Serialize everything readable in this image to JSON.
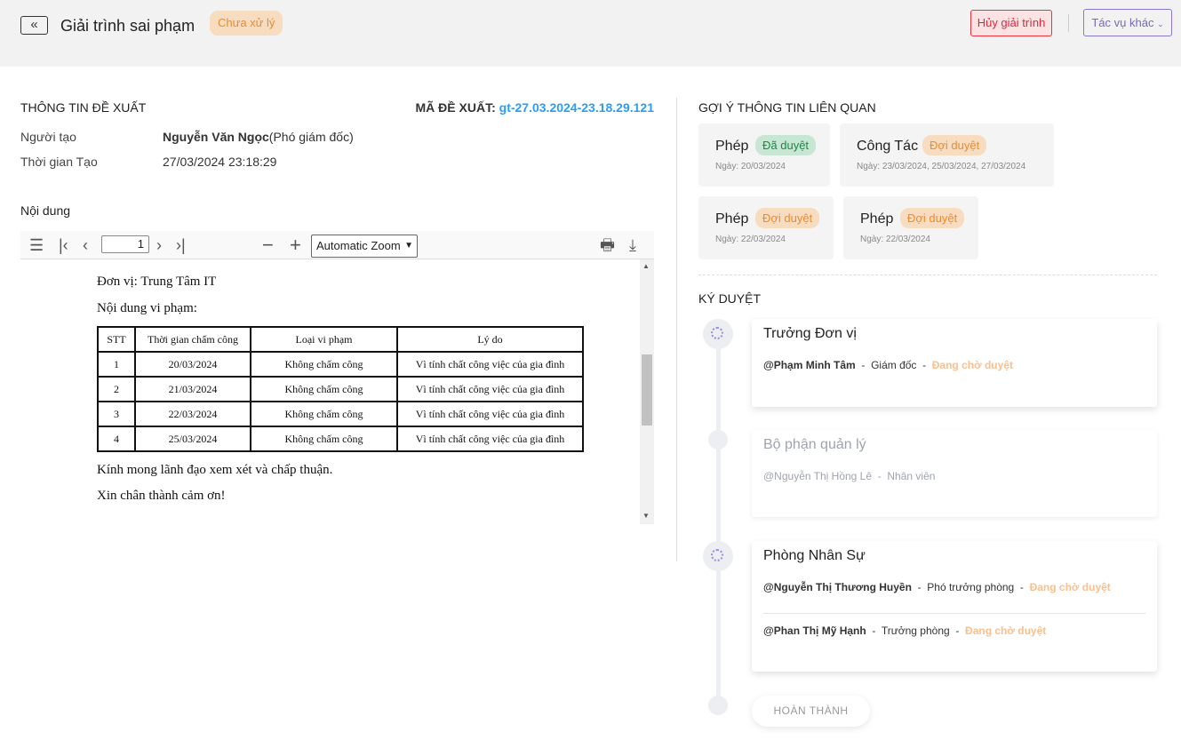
{
  "header": {
    "title": "Giải trình sai phạm",
    "status": "Chưa xử lý",
    "cancel_label": "Hủy giải trình",
    "more_label": "Tác vụ khác"
  },
  "info": {
    "section_title": "THÔNG TIN ĐỀ XUẤT",
    "code_label": "MÃ ĐỀ XUẤT:",
    "code_value": "gt-27.03.2024-23.18.29.121",
    "creator_label": "Người tạo",
    "creator_name": "Nguyễn Văn Ngọc",
    "creator_role": "(Phó giám đốc)",
    "time_label": "Thời gian Tạo",
    "time_value": "27/03/2024 23:18:29",
    "content_label": "Nội dung"
  },
  "pdf": {
    "page": "1",
    "zoom": "Automatic Zoom",
    "unit": "Đơn vị: Trung Tâm IT",
    "violation_label": "Nội dung vi phạm:",
    "columns": [
      "STT",
      "Thời gian chấm công",
      "Loại vi phạm",
      "Lý do"
    ],
    "rows": [
      [
        "1",
        "20/03/2024",
        "Không chấm công",
        "Vì tính chất công việc của gia đình"
      ],
      [
        "2",
        "21/03/2024",
        "Không chấm công",
        "Vì tính chất công việc của gia đình"
      ],
      [
        "3",
        "22/03/2024",
        "Không chấm công",
        "Vì tính chất công việc của gia đình"
      ],
      [
        "4",
        "25/03/2024",
        "Không chấm công",
        "Vì tính chất công việc của gia đình"
      ]
    ],
    "closing1": "Kính mong lãnh đạo xem xét và chấp thuận.",
    "closing2": "Xin chân thành cảm ơn!"
  },
  "related": {
    "title": "GỢI Ý THÔNG TIN LIÊN QUAN",
    "items": [
      {
        "type": "Phép",
        "status": "Đã duyệt",
        "date": "Ngày: 20/03/2024"
      },
      {
        "type": "Công Tác",
        "status": "Đợi duyệt",
        "date": "Ngày: 23/03/2024, 25/03/2024, 27/03/2024"
      },
      {
        "type": "Phép",
        "status": "Đợi duyệt",
        "date": "Ngày: 22/03/2024"
      },
      {
        "type": "Phép",
        "status": "Đợi duyệt",
        "date": "Ngày: 22/03/2024"
      }
    ]
  },
  "approval": {
    "title": "KÝ DUYỆT",
    "steps": [
      {
        "name": "Trưởng Đơn vị",
        "approvers": [
          {
            "name": "@Phạm Minh Tâm",
            "role": "Giám đốc",
            "status": "Đang chờ duyệt"
          }
        ]
      },
      {
        "name": "Bộ phận quản lý",
        "approvers": [
          {
            "name": "@Nguyễn Thị Hồng Lê",
            "role": "Nhân viên"
          }
        ]
      },
      {
        "name": "Phòng Nhân Sự",
        "approvers": [
          {
            "name": "@Nguyễn Thị Thương Huyền",
            "role": "Phó trưởng phòng",
            "status": "Đang chờ duyệt"
          },
          {
            "name": "@Phan Thị Mỹ Hạnh",
            "role": "Trưởng phòng",
            "status": "Đang chờ duyệt"
          }
        ]
      }
    ],
    "done_label": "HOÀN THÀNH"
  }
}
